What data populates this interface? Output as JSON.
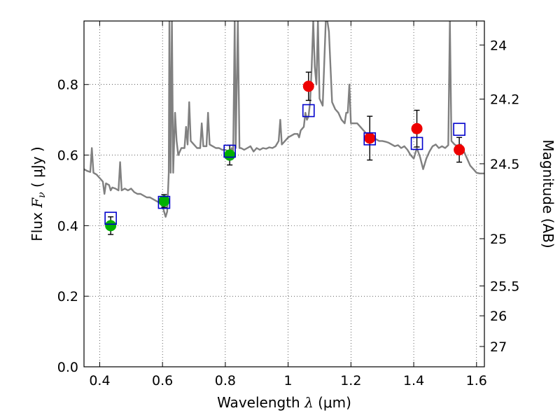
{
  "chart_data": {
    "type": "scatter",
    "title": "",
    "xlabel": {
      "prefix": "Wavelength  ",
      "var": "λ",
      "unit": " (μm)"
    },
    "ylabel": {
      "prefix": "Flux  ",
      "var": "F",
      "sub": "ν",
      "unit": "  ( μJy )"
    },
    "y2label": "Magnitude (AB)",
    "xlim": [
      0.35,
      1.625
    ],
    "ylim": [
      0.0,
      0.98
    ],
    "grid": true,
    "x_ticks": [
      {
        "value": 0.4,
        "label": "0.4"
      },
      {
        "value": 0.6,
        "label": "0.6"
      },
      {
        "value": 0.8,
        "label": "0.8"
      },
      {
        "value": 1.0,
        "label": "1"
      },
      {
        "value": 1.2,
        "label": "1.2"
      },
      {
        "value": 1.4,
        "label": "1.4"
      },
      {
        "value": 1.6,
        "label": "1.6"
      }
    ],
    "y_ticks": [
      {
        "value": 0.0,
        "label": "0.0"
      },
      {
        "value": 0.2,
        "label": "0.2"
      },
      {
        "value": 0.4,
        "label": "0.4"
      },
      {
        "value": 0.6,
        "label": "0.6"
      },
      {
        "value": 0.8,
        "label": "0.8"
      }
    ],
    "y2_ticks": [
      {
        "mag": 24,
        "label": "24"
      },
      {
        "mag": 24.2,
        "label": "24.2"
      },
      {
        "mag": 24.5,
        "label": "24.5"
      },
      {
        "mag": 25,
        "label": "25"
      },
      {
        "mag": 25.5,
        "label": "25.5"
      },
      {
        "mag": 26,
        "label": "26"
      },
      {
        "mag": 27,
        "label": "27"
      }
    ],
    "series": [
      {
        "kind": "line",
        "color": "#808080",
        "points": [
          [
            0.35,
            0.56
          ],
          [
            0.36,
            0.555
          ],
          [
            0.37,
            0.552
          ],
          [
            0.375,
            0.62
          ],
          [
            0.38,
            0.55
          ],
          [
            0.39,
            0.545
          ],
          [
            0.4,
            0.535
          ],
          [
            0.41,
            0.525
          ],
          [
            0.415,
            0.49
          ],
          [
            0.42,
            0.52
          ],
          [
            0.43,
            0.515
          ],
          [
            0.435,
            0.5
          ],
          [
            0.44,
            0.508
          ],
          [
            0.45,
            0.505
          ],
          [
            0.46,
            0.5
          ],
          [
            0.465,
            0.58
          ],
          [
            0.47,
            0.5
          ],
          [
            0.48,
            0.505
          ],
          [
            0.49,
            0.5
          ],
          [
            0.5,
            0.505
          ],
          [
            0.51,
            0.495
          ],
          [
            0.52,
            0.49
          ],
          [
            0.53,
            0.49
          ],
          [
            0.54,
            0.485
          ],
          [
            0.55,
            0.48
          ],
          [
            0.56,
            0.48
          ],
          [
            0.57,
            0.475
          ],
          [
            0.58,
            0.47
          ],
          [
            0.59,
            0.465
          ],
          [
            0.6,
            0.455
          ],
          [
            0.605,
            0.44
          ],
          [
            0.61,
            0.425
          ],
          [
            0.615,
            0.44
          ],
          [
            0.62,
            0.55
          ],
          [
            0.622,
            0.98
          ],
          [
            0.626,
            0.55
          ],
          [
            0.63,
            0.98
          ],
          [
            0.634,
            0.55
          ],
          [
            0.64,
            0.72
          ],
          [
            0.645,
            0.64
          ],
          [
            0.65,
            0.6
          ],
          [
            0.66,
            0.62
          ],
          [
            0.67,
            0.62
          ],
          [
            0.675,
            0.68
          ],
          [
            0.68,
            0.63
          ],
          [
            0.685,
            0.75
          ],
          [
            0.69,
            0.64
          ],
          [
            0.7,
            0.63
          ],
          [
            0.71,
            0.62
          ],
          [
            0.72,
            0.62
          ],
          [
            0.725,
            0.69
          ],
          [
            0.73,
            0.625
          ],
          [
            0.74,
            0.625
          ],
          [
            0.745,
            0.72
          ],
          [
            0.75,
            0.63
          ],
          [
            0.76,
            0.625
          ],
          [
            0.77,
            0.62
          ],
          [
            0.78,
            0.62
          ],
          [
            0.79,
            0.615
          ],
          [
            0.8,
            0.615
          ],
          [
            0.81,
            0.61
          ],
          [
            0.815,
            0.605
          ],
          [
            0.82,
            0.62
          ],
          [
            0.825,
            0.6
          ],
          [
            0.83,
            0.98
          ],
          [
            0.833,
            0.62
          ],
          [
            0.84,
            0.98
          ],
          [
            0.845,
            0.62
          ],
          [
            0.85,
            0.62
          ],
          [
            0.86,
            0.615
          ],
          [
            0.87,
            0.62
          ],
          [
            0.88,
            0.625
          ],
          [
            0.89,
            0.61
          ],
          [
            0.9,
            0.62
          ],
          [
            0.91,
            0.615
          ],
          [
            0.92,
            0.62
          ],
          [
            0.93,
            0.618
          ],
          [
            0.94,
            0.622
          ],
          [
            0.95,
            0.62
          ],
          [
            0.96,
            0.625
          ],
          [
            0.97,
            0.64
          ],
          [
            0.975,
            0.7
          ],
          [
            0.98,
            0.63
          ],
          [
            0.99,
            0.64
          ],
          [
            1.0,
            0.65
          ],
          [
            1.01,
            0.655
          ],
          [
            1.02,
            0.66
          ],
          [
            1.03,
            0.66
          ],
          [
            1.035,
            0.65
          ],
          [
            1.04,
            0.67
          ],
          [
            1.05,
            0.68
          ],
          [
            1.055,
            0.72
          ],
          [
            1.06,
            0.7
          ],
          [
            1.065,
            0.71
          ],
          [
            1.07,
            0.75
          ],
          [
            1.075,
            0.85
          ],
          [
            1.08,
            0.98
          ],
          [
            1.085,
            0.85
          ],
          [
            1.09,
            0.8
          ],
          [
            1.095,
            0.98
          ],
          [
            1.1,
            0.76
          ],
          [
            1.11,
            0.74
          ],
          [
            1.12,
            0.98
          ],
          [
            1.125,
            0.98
          ],
          [
            1.13,
            0.95
          ],
          [
            1.14,
            0.75
          ],
          [
            1.15,
            0.73
          ],
          [
            1.16,
            0.72
          ],
          [
            1.17,
            0.7
          ],
          [
            1.18,
            0.69
          ],
          [
            1.185,
            0.72
          ],
          [
            1.19,
            0.72
          ],
          [
            1.195,
            0.8
          ],
          [
            1.2,
            0.69
          ],
          [
            1.21,
            0.69
          ],
          [
            1.22,
            0.69
          ],
          [
            1.23,
            0.68
          ],
          [
            1.24,
            0.67
          ],
          [
            1.25,
            0.66
          ],
          [
            1.26,
            0.655
          ],
          [
            1.27,
            0.65
          ],
          [
            1.28,
            0.645
          ],
          [
            1.29,
            0.64
          ],
          [
            1.3,
            0.64
          ],
          [
            1.31,
            0.638
          ],
          [
            1.32,
            0.635
          ],
          [
            1.33,
            0.63
          ],
          [
            1.34,
            0.625
          ],
          [
            1.35,
            0.628
          ],
          [
            1.36,
            0.62
          ],
          [
            1.37,
            0.625
          ],
          [
            1.38,
            0.615
          ],
          [
            1.39,
            0.6
          ],
          [
            1.4,
            0.59
          ],
          [
            1.41,
            0.62
          ],
          [
            1.42,
            0.595
          ],
          [
            1.43,
            0.56
          ],
          [
            1.44,
            0.59
          ],
          [
            1.45,
            0.61
          ],
          [
            1.46,
            0.625
          ],
          [
            1.47,
            0.63
          ],
          [
            1.48,
            0.62
          ],
          [
            1.49,
            0.625
          ],
          [
            1.5,
            0.62
          ],
          [
            1.51,
            0.628
          ],
          [
            1.515,
            0.98
          ],
          [
            1.52,
            0.64
          ],
          [
            1.53,
            0.63
          ],
          [
            1.54,
            0.625
          ],
          [
            1.55,
            0.63
          ],
          [
            1.56,
            0.61
          ],
          [
            1.57,
            0.59
          ],
          [
            1.58,
            0.57
          ],
          [
            1.59,
            0.56
          ],
          [
            1.6,
            0.55
          ],
          [
            1.61,
            0.548
          ],
          [
            1.625,
            0.548
          ]
        ]
      },
      {
        "kind": "marker",
        "marker": "circle",
        "color": "#00b000",
        "points": [
          {
            "x": 0.435,
            "y": 0.4,
            "err": 0.025
          },
          {
            "x": 0.605,
            "y": 0.47,
            "err": 0.018
          },
          {
            "x": 0.814,
            "y": 0.6,
            "err": 0.028
          }
        ]
      },
      {
        "kind": "marker",
        "marker": "circle",
        "color": "#ee0000",
        "points": [
          {
            "x": 1.065,
            "y": 0.795,
            "err": 0.04
          },
          {
            "x": 1.26,
            "y": 0.648,
            "err": 0.062
          },
          {
            "x": 1.41,
            "y": 0.675,
            "err": 0.052
          },
          {
            "x": 1.545,
            "y": 0.615,
            "err": 0.035
          }
        ]
      },
      {
        "kind": "marker",
        "marker": "square-open",
        "color": "#0000cc",
        "points": [
          {
            "x": 0.435,
            "y": 0.42
          },
          {
            "x": 0.605,
            "y": 0.465
          },
          {
            "x": 0.814,
            "y": 0.61
          },
          {
            "x": 1.065,
            "y": 0.725
          },
          {
            "x": 1.26,
            "y": 0.645
          },
          {
            "x": 1.41,
            "y": 0.632
          },
          {
            "x": 1.545,
            "y": 0.672
          }
        ]
      }
    ]
  }
}
